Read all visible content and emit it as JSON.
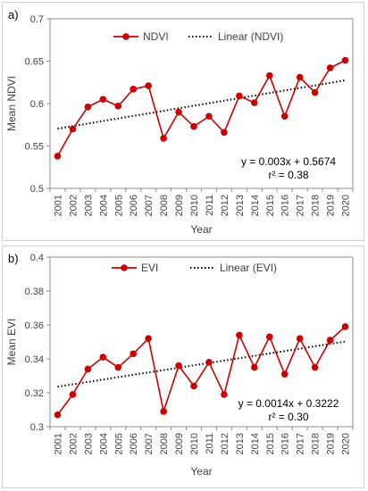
{
  "chart_data": [
    {
      "type": "line",
      "panel_label": "a)",
      "x": [
        2001,
        2002,
        2003,
        2004,
        2005,
        2006,
        2007,
        2008,
        2009,
        2010,
        2011,
        2012,
        2013,
        2014,
        2015,
        2016,
        2017,
        2018,
        2019,
        2020
      ],
      "series": [
        {
          "name": "NDVI",
          "values": [
            0.538,
            0.57,
            0.596,
            0.605,
            0.597,
            0.617,
            0.621,
            0.559,
            0.59,
            0.573,
            0.585,
            0.566,
            0.609,
            0.601,
            0.633,
            0.585,
            0.631,
            0.613,
            0.642,
            0.651
          ],
          "color": "#cc0000"
        }
      ],
      "trendline": {
        "name": "Linear (NDVI)",
        "slope": 0.003,
        "intercept": 0.5674,
        "color": "#000000"
      },
      "equation": "y = 0.003x + 0.5674",
      "r2": "r² = 0.38",
      "ylabel": "Mean NDVI",
      "xlabel": "Year",
      "ylim": [
        0.5,
        0.7
      ],
      "yticks": [
        "0.5",
        "0.55",
        "0.6",
        "0.65",
        "0.7"
      ],
      "ytick_values": [
        0.5,
        0.55,
        0.6,
        0.65,
        0.7
      ],
      "grid": false,
      "legend_position": "top"
    },
    {
      "type": "line",
      "panel_label": "b)",
      "x": [
        2001,
        2002,
        2003,
        2004,
        2005,
        2006,
        2007,
        2008,
        2009,
        2010,
        2011,
        2012,
        2013,
        2014,
        2015,
        2016,
        2017,
        2018,
        2019,
        2020
      ],
      "series": [
        {
          "name": "EVI",
          "values": [
            0.307,
            0.319,
            0.334,
            0.341,
            0.335,
            0.343,
            0.352,
            0.309,
            0.336,
            0.324,
            0.338,
            0.319,
            0.354,
            0.335,
            0.353,
            0.331,
            0.352,
            0.335,
            0.351,
            0.359
          ],
          "color": "#cc0000"
        }
      ],
      "trendline": {
        "name": "Linear (EVI)",
        "slope": 0.0014,
        "intercept": 0.3222,
        "color": "#000000"
      },
      "equation": "y = 0.0014x + 0.3222",
      "r2": "r² = 0.30",
      "ylabel": "Mean EVI",
      "xlabel": "Year",
      "ylim": [
        0.3,
        0.4
      ],
      "yticks": [
        "0.3",
        "0.32",
        "0.34",
        "0.36",
        "0.38",
        "0.4"
      ],
      "ytick_values": [
        0.3,
        0.32,
        0.34,
        0.36,
        0.38,
        0.4
      ],
      "grid": false,
      "legend_position": "top"
    }
  ]
}
